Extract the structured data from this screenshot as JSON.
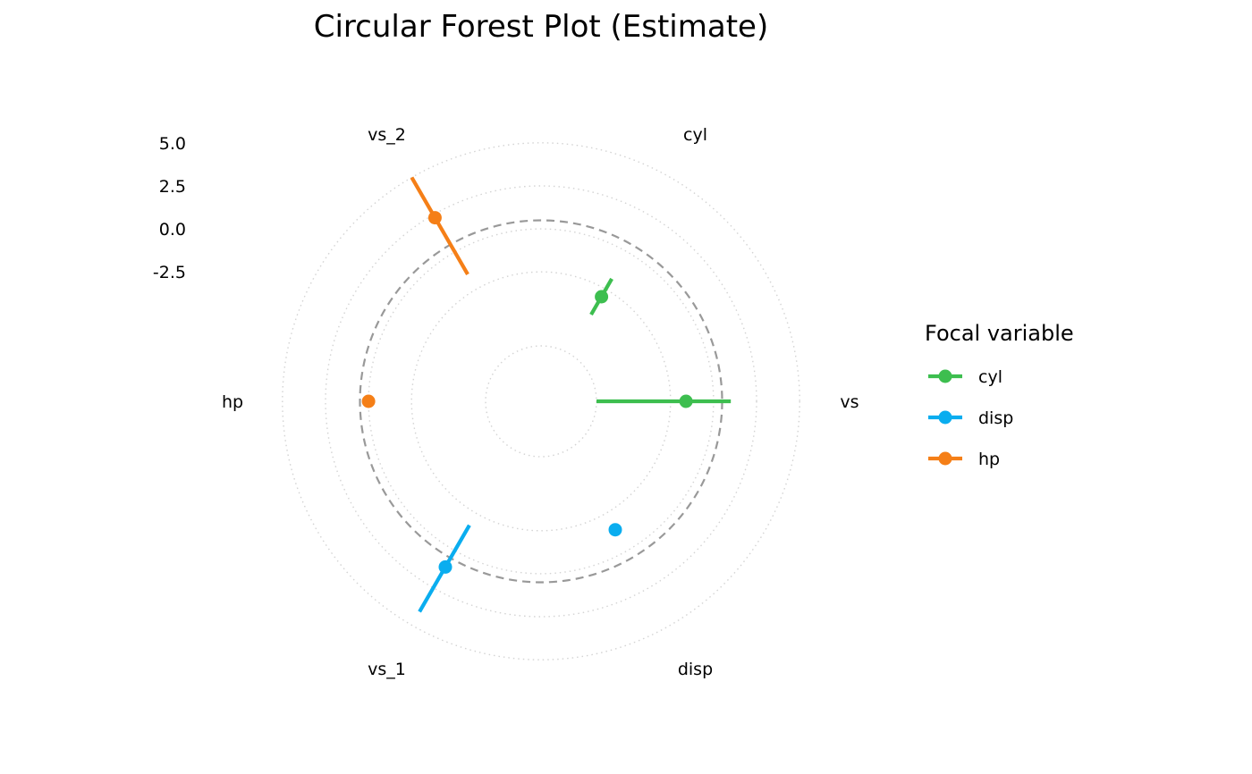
{
  "chart_data": {
    "type": "circular-forest",
    "title": "Circular Forest Plot (Estimate)",
    "categories": [
      "vs",
      "cyl",
      "vs_2",
      "hp",
      "vs_1",
      "disp"
    ],
    "radial_ticks": [
      "5.0",
      "2.5",
      "0.0",
      "-2.5"
    ],
    "radial_tick_values": [
      5.0,
      2.5,
      0.0,
      -2.5
    ],
    "rlim": [
      -6.8,
      7.9
    ],
    "reference_value": 0.5,
    "legend_title": "Focal variable",
    "series": [
      {
        "name": "cyl",
        "color": "#3DBE4F",
        "points": [
          {
            "category": "cyl",
            "estimate": -3.0,
            "lower": -4.2,
            "upper": -1.8
          },
          {
            "category": "vs",
            "estimate": -1.6,
            "lower": -6.8,
            "upper": 1.0
          }
        ]
      },
      {
        "name": "disp",
        "color": "#0AADEF",
        "points": [
          {
            "category": "disp",
            "estimate": -1.4,
            "lower": null,
            "upper": null
          },
          {
            "category": "vs_1",
            "estimate": 1.1,
            "lower": -1.7,
            "upper": 4.1
          }
        ]
      },
      {
        "name": "hp",
        "color": "#F57F17",
        "points": [
          {
            "category": "hp",
            "estimate": 0.0,
            "lower": null,
            "upper": null
          },
          {
            "category": "vs_2",
            "estimate": 2.3,
            "lower": -1.5,
            "upper": 5.0
          }
        ]
      }
    ]
  }
}
